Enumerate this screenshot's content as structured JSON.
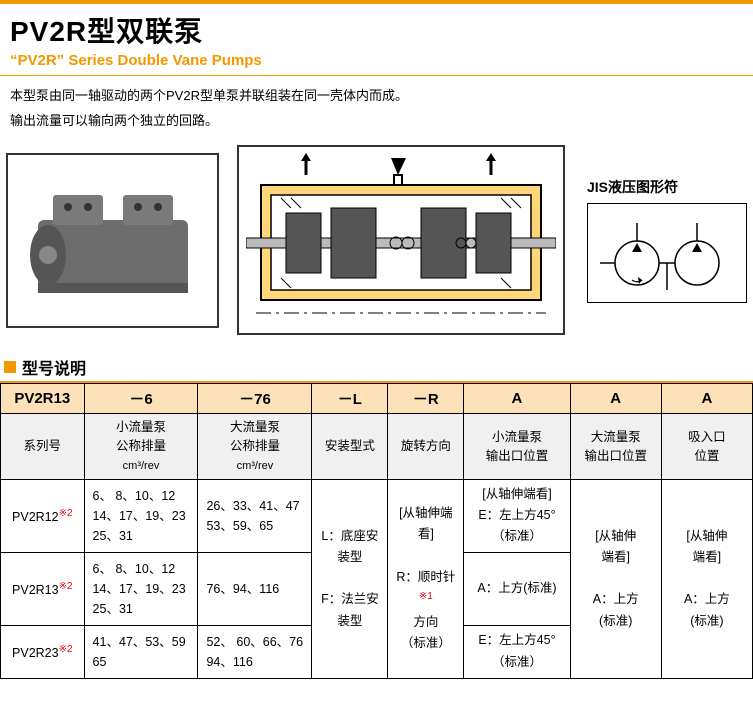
{
  "colors": {
    "accent": "#f39800",
    "accent_light": "#fde2b9",
    "header_gray": "#f0f0f0",
    "text": "#000000",
    "red": "#e60012",
    "background": "#ffffff",
    "border": "#000000"
  },
  "header": {
    "title": "PV2R型双联泵",
    "subtitle": "“PV2R” Series Double Vane Pumps"
  },
  "description": {
    "line1": "本型泵由同一轴驱动的两个PV2R型单泵并联组装在同一壳体内而成。",
    "line2": "输出流量可以输向两个独立的回路。"
  },
  "figures": {
    "left_caption": "[pump photo]",
    "center_caption": "[cross-section diagram]",
    "jis_label": "JIS液压图形符"
  },
  "section": {
    "model_desc": "型号说明"
  },
  "table": {
    "header_row1": [
      "PV2R13",
      "－6",
      "－76",
      "－L",
      "－R",
      "A",
      "A",
      "A"
    ],
    "header_row2": {
      "c1": "系列号",
      "c2_a": "小流量泵",
      "c2_b": "公称排量",
      "c2_c": "cm³/rev",
      "c3_a": "大流量泵",
      "c3_b": "公称排量",
      "c3_c": "cm³/rev",
      "c4": "安装型式",
      "c5": "旋转方向",
      "c6_a": "小流量泵",
      "c6_b": "输出口位置",
      "c7_a": "大流量泵",
      "c7_b": "输出口位置",
      "c8_a": "吸入口",
      "c8_b": "位置"
    },
    "rows": [
      {
        "series": "PV2R12",
        "note": "※2",
        "small": "6、 8、10、12\n14、17、19、23\n25、31",
        "large": "26、33、41、47\n53、59、65",
        "out1": "[从轴伸端看]\nE：左上方45°\n（标准）"
      },
      {
        "series": "PV2R13",
        "note": "※2",
        "small": "6、 8、10、12\n14、17、19、23\n25、31",
        "large": "76、94、116",
        "out1": "A：上方(标准)"
      },
      {
        "series": "PV2R23",
        "note": "※2",
        "small": "41、47、53、59\n65",
        "large": "52、 60、66、76\n94、116",
        "out1": "E：左上方45°\n（标准）"
      }
    ],
    "merged": {
      "mount_a": "L：底座安",
      "mount_b": "装型",
      "mount_c": "F：法兰安",
      "mount_d": "装型",
      "rot_a": "[从轴伸端看]",
      "rot_b": "R：顺时针",
      "rot_note": "※1",
      "rot_c": "方向",
      "rot_d": "（标准）",
      "out2_a": "[从轴伸",
      "out2_b": "端看]",
      "out2_c": "A：上方",
      "out2_d": "(标准)",
      "in_a": "[从轴伸",
      "in_b": "端看]",
      "in_c": "A：上方",
      "in_d": "(标准)"
    }
  }
}
